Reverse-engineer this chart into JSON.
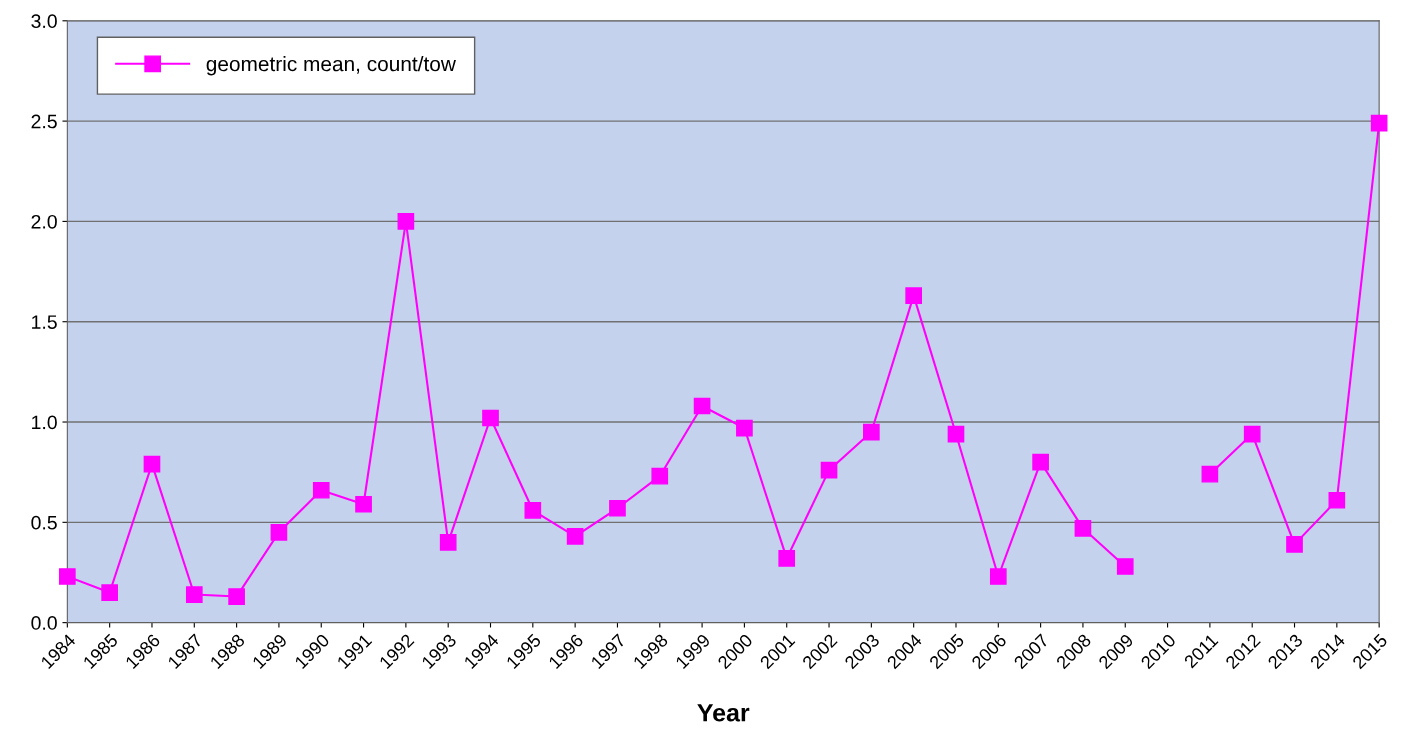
{
  "chart_data": {
    "type": "line",
    "xlabel": "Year",
    "categories": [
      "1984",
      "1985",
      "1986",
      "1987",
      "1988",
      "1989",
      "1990",
      "1991",
      "1992",
      "1993",
      "1994",
      "1995",
      "1996",
      "1997",
      "1998",
      "1999",
      "2000",
      "2001",
      "2002",
      "2003",
      "2004",
      "2005",
      "2006",
      "2007",
      "2008",
      "2009",
      "2010",
      "2011",
      "2012",
      "2013",
      "2014",
      "2015"
    ],
    "series": [
      {
        "name": "geometric mean, count/tow",
        "color": "#ff00ff",
        "values": [
          0.23,
          0.15,
          0.79,
          0.14,
          0.13,
          0.45,
          0.66,
          0.59,
          2.0,
          0.4,
          1.02,
          0.56,
          0.43,
          0.57,
          0.73,
          1.08,
          0.97,
          0.32,
          0.76,
          0.95,
          1.63,
          0.94,
          0.23,
          0.8,
          0.47,
          0.28,
          null,
          0.74,
          0.94,
          0.39,
          0.61,
          2.49
        ]
      }
    ],
    "ylim": [
      0,
      3
    ],
    "yticks": [
      {
        "value": 0,
        "label": "0.0"
      },
      0.5,
      {
        "value": 1,
        "label": "1.0"
      },
      1.5,
      {
        "value": 2,
        "label": "2.0"
      },
      2.5,
      {
        "value": 3,
        "label": "3.0"
      }
    ],
    "grid": "y",
    "legend": "top left",
    "marker": "square",
    "line_style": "solid"
  }
}
